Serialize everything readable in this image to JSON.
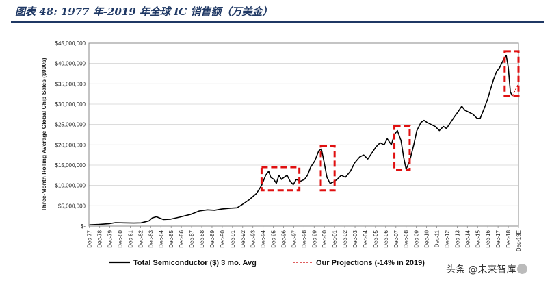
{
  "header": {
    "figure_title": "图表 48:  1977 年-2019 年全球 IC 销售额（万美金）"
  },
  "watermark": {
    "text": "头条 @未来智库"
  },
  "chart_data": {
    "type": "line",
    "title": "",
    "ylabel": "Three-Month Rolling Average Global Chip Sales ($000s)",
    "xlabel": "",
    "ylim": [
      0,
      45000000
    ],
    "yticks": [
      0,
      5000000,
      10000000,
      15000000,
      20000000,
      25000000,
      30000000,
      35000000,
      40000000,
      45000000
    ],
    "ytick_labels": [
      "$-",
      "$5,000,000",
      "$10,000,000",
      "$15,000,000",
      "$20,000,000",
      "$25,000,000",
      "$30,000,000",
      "$35,000,000",
      "$40,000,000",
      "$45,000,000"
    ],
    "xlim": [
      1977.9,
      2019.95
    ],
    "xtick_labels": [
      "Dec-77",
      "Dec-78",
      "Dec-79",
      "Dec-80",
      "Dec-81",
      "Dec-82",
      "Dec-83",
      "Dec-84",
      "Dec-85",
      "Dec-86",
      "Dec-87",
      "Dec-88",
      "Dec-89",
      "Dec-90",
      "Dec-91",
      "Dec-92",
      "Dec-93",
      "Dec-94",
      "Dec-95",
      "Dec-96",
      "Dec-97",
      "Dec-98",
      "Dec-99",
      "Dec-00",
      "Dec-01",
      "Dec-02",
      "Dec-03",
      "Dec-04",
      "Dec-05",
      "Dec-06",
      "Dec-07",
      "Dec-08",
      "Dec-09",
      "Dec-10",
      "Dec-11",
      "Dec-12",
      "Dec-13",
      "Dec-14",
      "Dec-15",
      "Dec-16",
      "Dec-17",
      "Dec-18",
      "Dec-19E"
    ],
    "grid": true,
    "legend_position": "bottom",
    "series": [
      {
        "name": "Total Semiconductor ($) 3 mo. Avg",
        "color": "#000000",
        "style": "solid",
        "points": [
          [
            1977.95,
            300000
          ],
          [
            1978.9,
            400000
          ],
          [
            1979.9,
            600000
          ],
          [
            1980.5,
            850000
          ],
          [
            1981.3,
            800000
          ],
          [
            1982.3,
            750000
          ],
          [
            1983.0,
            800000
          ],
          [
            1983.8,
            1300000
          ],
          [
            1984.1,
            2000000
          ],
          [
            1984.5,
            2300000
          ],
          [
            1985.2,
            1600000
          ],
          [
            1985.9,
            1700000
          ],
          [
            1986.8,
            2200000
          ],
          [
            1987.9,
            2900000
          ],
          [
            1988.7,
            3700000
          ],
          [
            1989.5,
            4000000
          ],
          [
            1990.2,
            3900000
          ],
          [
            1990.9,
            4200000
          ],
          [
            1991.7,
            4400000
          ],
          [
            1992.4,
            4500000
          ],
          [
            1992.9,
            5300000
          ],
          [
            1993.6,
            6500000
          ],
          [
            1994.3,
            8000000
          ],
          [
            1994.8,
            10000000
          ],
          [
            1995.2,
            12500000
          ],
          [
            1995.5,
            13500000
          ],
          [
            1995.7,
            12000000
          ],
          [
            1996.0,
            11500000
          ],
          [
            1996.25,
            10500000
          ],
          [
            1996.5,
            12500000
          ],
          [
            1996.75,
            11500000
          ],
          [
            1997.0,
            12000000
          ],
          [
            1997.3,
            12500000
          ],
          [
            1997.6,
            11000000
          ],
          [
            1997.9,
            10200000
          ],
          [
            1998.2,
            11500000
          ],
          [
            1998.6,
            11000000
          ],
          [
            1999.0,
            11500000
          ],
          [
            1999.3,
            12500000
          ],
          [
            1999.6,
            14500000
          ],
          [
            2000.0,
            16000000
          ],
          [
            2000.4,
            18500000
          ],
          [
            2000.65,
            19000000
          ],
          [
            2000.9,
            16000000
          ],
          [
            2001.2,
            12000000
          ],
          [
            2001.5,
            10500000
          ],
          [
            2001.8,
            10800000
          ],
          [
            2002.2,
            11500000
          ],
          [
            2002.6,
            12500000
          ],
          [
            2003.0,
            12000000
          ],
          [
            2003.5,
            13500000
          ],
          [
            2003.9,
            15500000
          ],
          [
            2004.4,
            17000000
          ],
          [
            2004.8,
            17500000
          ],
          [
            2005.2,
            16500000
          ],
          [
            2005.6,
            18000000
          ],
          [
            2006.0,
            19500000
          ],
          [
            2006.4,
            20500000
          ],
          [
            2006.8,
            20000000
          ],
          [
            2007.1,
            21500000
          ],
          [
            2007.5,
            20000000
          ],
          [
            2007.8,
            22500000
          ],
          [
            2008.1,
            23500000
          ],
          [
            2008.45,
            21000000
          ],
          [
            2008.7,
            17000000
          ],
          [
            2008.95,
            14000000
          ],
          [
            2009.3,
            16000000
          ],
          [
            2009.7,
            20000000
          ],
          [
            2010.0,
            23500000
          ],
          [
            2010.4,
            25500000
          ],
          [
            2010.7,
            26000000
          ],
          [
            2011.0,
            25500000
          ],
          [
            2011.4,
            25000000
          ],
          [
            2011.8,
            24500000
          ],
          [
            2012.2,
            23500000
          ],
          [
            2012.6,
            24500000
          ],
          [
            2012.9,
            24000000
          ],
          [
            2013.3,
            25500000
          ],
          [
            2013.7,
            27000000
          ],
          [
            2014.0,
            28000000
          ],
          [
            2014.4,
            29500000
          ],
          [
            2014.7,
            28500000
          ],
          [
            2015.1,
            28000000
          ],
          [
            2015.5,
            27500000
          ],
          [
            2015.9,
            26500000
          ],
          [
            2016.2,
            26500000
          ],
          [
            2016.6,
            29000000
          ],
          [
            2016.9,
            31000000
          ],
          [
            2017.2,
            33500000
          ],
          [
            2017.5,
            36000000
          ],
          [
            2017.8,
            38000000
          ],
          [
            2018.1,
            39000000
          ],
          [
            2018.5,
            41000000
          ],
          [
            2018.75,
            42000000
          ],
          [
            2018.95,
            39000000
          ],
          [
            2019.15,
            33000000
          ],
          [
            2019.35,
            32000000
          ]
        ]
      },
      {
        "name": "Our Projections (-14% in 2019)",
        "color": "#cc0000",
        "style": "dashed",
        "points": [
          [
            2019.35,
            32000000
          ],
          [
            2019.55,
            33000000
          ],
          [
            2019.75,
            34000000
          ],
          [
            2019.95,
            35000000
          ]
        ]
      }
    ],
    "annotations": [
      {
        "type": "highlight-box",
        "color": "#e01010",
        "x": [
          1994.8,
          1998.5
        ],
        "y": [
          8800000,
          14500000
        ]
      },
      {
        "type": "highlight-box",
        "color": "#e01010",
        "x": [
          2000.6,
          2001.95
        ],
        "y": [
          8800000,
          19800000
        ]
      },
      {
        "type": "highlight-box",
        "color": "#e01010",
        "x": [
          2007.8,
          2009.3
        ],
        "y": [
          13800000,
          24700000
        ]
      },
      {
        "type": "highlight-box",
        "color": "#e01010",
        "x": [
          2018.6,
          2019.95
        ],
        "y": [
          32000000,
          43000000
        ]
      }
    ]
  }
}
